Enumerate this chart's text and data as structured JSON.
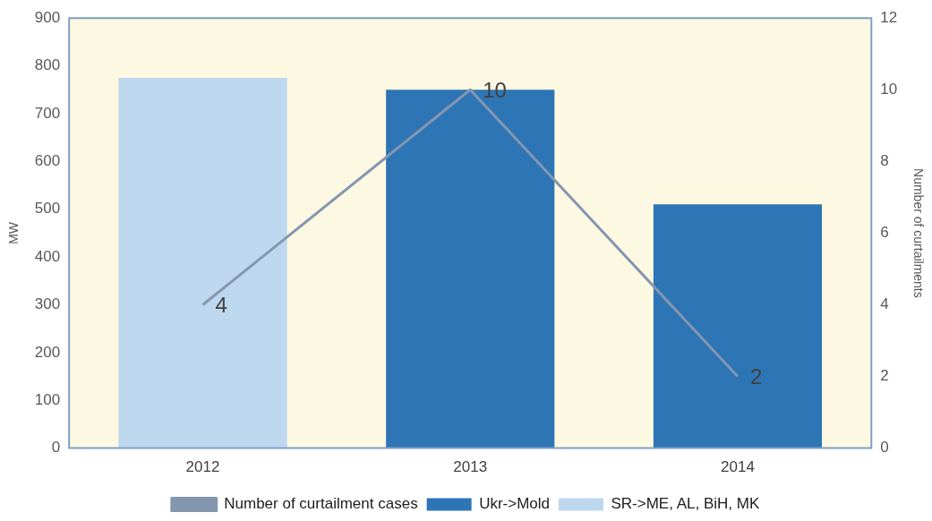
{
  "chart_data": {
    "type": "bar",
    "categories": [
      "2012",
      "2013",
      "2014"
    ],
    "series": [
      {
        "name": "Ukr->Mold",
        "color": "#2e75b6",
        "values": [
          null,
          750,
          510
        ]
      },
      {
        "name": "SR->ME, AL, BiH, MK",
        "color": "#bdd7ee",
        "values": [
          775,
          null,
          null
        ]
      },
      {
        "name": "Number of curtailment cases",
        "type": "line",
        "axis": "y2",
        "color": "#8497b0",
        "marker": "none",
        "values": [
          4,
          10,
          2
        ],
        "value_labels": [
          "4",
          "10",
          "2"
        ]
      }
    ],
    "ylabel": "MW",
    "y2label": "Number of curtailments",
    "ylim": [
      0,
      900
    ],
    "yticks": [
      0,
      100,
      200,
      300,
      400,
      500,
      600,
      700,
      800,
      900
    ],
    "y2lim": [
      0,
      12
    ],
    "y2ticks": [
      0,
      2,
      4,
      6,
      8,
      10,
      12
    ],
    "grid": false,
    "legend": "bottom"
  }
}
